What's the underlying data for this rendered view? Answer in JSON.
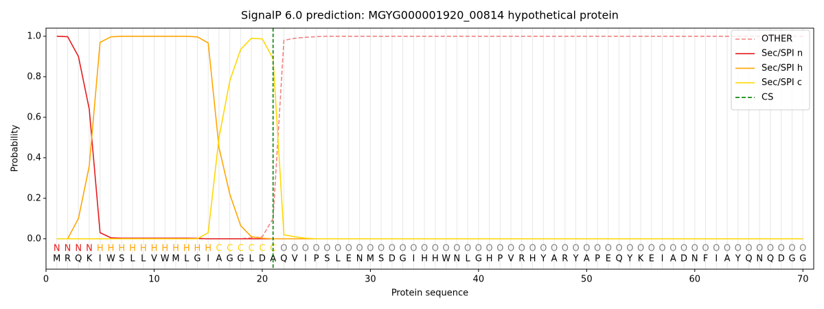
{
  "chart_data": {
    "type": "line",
    "title": "SignalP 6.0 prediction: MGYG000001920_00814 hypothetical protein",
    "xlabel": "Protein sequence",
    "ylabel": "Probability",
    "x": [
      1,
      2,
      3,
      4,
      5,
      6,
      7,
      8,
      9,
      10,
      11,
      12,
      13,
      14,
      15,
      16,
      17,
      18,
      19,
      20,
      21,
      22,
      23,
      24,
      25,
      26,
      27,
      28,
      29,
      30,
      31,
      32,
      33,
      34,
      35,
      36,
      37,
      38,
      39,
      40,
      41,
      42,
      43,
      44,
      45,
      46,
      47,
      48,
      49,
      50,
      51,
      52,
      53,
      54,
      55,
      56,
      57,
      58,
      59,
      60,
      61,
      62,
      63,
      64,
      65,
      66,
      67,
      68,
      69,
      70
    ],
    "sequence": [
      "M",
      "R",
      "Q",
      "K",
      "I",
      "W",
      "S",
      "L",
      "L",
      "V",
      "W",
      "M",
      "L",
      "G",
      "I",
      "A",
      "G",
      "G",
      "L",
      "D",
      "A",
      "Q",
      "V",
      "I",
      "P",
      "S",
      "L",
      "E",
      "N",
      "M",
      "S",
      "D",
      "G",
      "I",
      "H",
      "H",
      "W",
      "N",
      "L",
      "G",
      "H",
      "P",
      "V",
      "R",
      "H",
      "Y",
      "A",
      "R",
      "Y",
      "A",
      "P",
      "E",
      "Q",
      "Y",
      "K",
      "E",
      "I",
      "A",
      "D",
      "N",
      "F",
      "I",
      "A",
      "Y",
      "Q",
      "N",
      "Q",
      "D",
      "G",
      "G"
    ],
    "annotations": [
      "N",
      "N",
      "N",
      "N",
      "H",
      "H",
      "H",
      "H",
      "H",
      "H",
      "H",
      "H",
      "H",
      "H",
      "H",
      "C",
      "C",
      "C",
      "C",
      "C",
      "C",
      "O",
      "O",
      "O",
      "O",
      "O",
      "O",
      "O",
      "O",
      "O",
      "O",
      "O",
      "O",
      "O",
      "O",
      "O",
      "O",
      "O",
      "O",
      "O",
      "O",
      "O",
      "O",
      "O",
      "O",
      "O",
      "O",
      "O",
      "O",
      "O",
      "O",
      "O",
      "O",
      "O",
      "O",
      "O",
      "O",
      "O",
      "O",
      "O",
      "O",
      "O",
      "O",
      "O",
      "O",
      "O",
      "O",
      "O",
      "O",
      "O"
    ],
    "annotation_colors": {
      "N": "#e41a1c",
      "H": "#ffa500",
      "C": "#ffd700",
      "O": "#808080"
    },
    "series": [
      {
        "name": "OTHER",
        "color": "#f08080",
        "linestyle": "dashed",
        "values": [
          0,
          0,
          0,
          0,
          0,
          0,
          0,
          0,
          0,
          0,
          0,
          0,
          0,
          0,
          0,
          0,
          0,
          0,
          0.005,
          0.01,
          0.1,
          0.98,
          0.99,
          0.995,
          0.998,
          1,
          1,
          1,
          1,
          1,
          1,
          1,
          1,
          1,
          1,
          1,
          1,
          1,
          1,
          1,
          1,
          1,
          1,
          1,
          1,
          1,
          1,
          1,
          1,
          1,
          1,
          1,
          1,
          1,
          1,
          1,
          1,
          1,
          1,
          1,
          1,
          1,
          1,
          1,
          1,
          1,
          1,
          1,
          1,
          1
        ]
      },
      {
        "name": "Sec/SPI n",
        "color": "#e41a1c",
        "linestyle": "solid",
        "values": [
          1,
          0.998,
          0.9,
          0.64,
          0.03,
          0.005,
          0.003,
          0.003,
          0.003,
          0.003,
          0.003,
          0.003,
          0.003,
          0.002,
          0,
          0,
          0,
          0,
          0,
          0,
          0,
          0,
          0,
          0,
          0,
          0,
          0,
          0,
          0,
          0,
          0,
          0,
          0,
          0,
          0,
          0,
          0,
          0,
          0,
          0,
          0,
          0,
          0,
          0,
          0,
          0,
          0,
          0,
          0,
          0,
          0,
          0,
          0,
          0,
          0,
          0,
          0,
          0,
          0,
          0,
          0,
          0,
          0,
          0,
          0,
          0,
          0,
          0,
          0,
          0
        ]
      },
      {
        "name": "Sec/SPI h",
        "color": "#ffa500",
        "linestyle": "solid",
        "values": [
          0,
          0,
          0.1,
          0.36,
          0.97,
          0.997,
          1,
          1,
          1,
          1,
          1,
          1,
          1,
          0.997,
          0.967,
          0.45,
          0.22,
          0.065,
          0.01,
          0.003,
          0,
          0,
          0,
          0,
          0,
          0,
          0,
          0,
          0,
          0,
          0,
          0,
          0,
          0,
          0,
          0,
          0,
          0,
          0,
          0,
          0,
          0,
          0,
          0,
          0,
          0,
          0,
          0,
          0,
          0,
          0,
          0,
          0,
          0,
          0,
          0,
          0,
          0,
          0,
          0,
          0,
          0,
          0,
          0,
          0,
          0,
          0,
          0,
          0,
          0
        ]
      },
      {
        "name": "Sec/SPI c",
        "color": "#ffd700",
        "linestyle": "solid",
        "values": [
          0,
          0,
          0,
          0,
          0,
          0,
          0,
          0,
          0,
          0,
          0,
          0,
          0,
          0,
          0.03,
          0.5,
          0.78,
          0.935,
          0.99,
          0.987,
          0.89,
          0.02,
          0.01,
          0.003,
          0,
          0,
          0,
          0,
          0,
          0,
          0,
          0,
          0,
          0,
          0,
          0,
          0,
          0,
          0,
          0,
          0,
          0,
          0,
          0,
          0,
          0,
          0,
          0,
          0,
          0,
          0,
          0,
          0,
          0,
          0,
          0,
          0,
          0,
          0,
          0,
          0,
          0,
          0,
          0,
          0,
          0,
          0,
          0,
          0,
          0
        ]
      }
    ],
    "cs": {
      "name": "CS",
      "x": 21,
      "color": "#008000"
    },
    "xlim": [
      0,
      71
    ],
    "ylim": [
      -0.15,
      1.04
    ],
    "xticks": [
      0,
      10,
      20,
      30,
      40,
      50,
      60,
      70
    ],
    "yticks": [
      {
        "value": 0,
        "label": "0.0"
      },
      {
        "value": 0.2,
        "label": "0.2"
      },
      {
        "value": 0.4,
        "label": "0.4"
      },
      {
        "value": 0.6,
        "label": "0.6"
      },
      {
        "value": 0.8,
        "label": "0.8"
      },
      {
        "value": 1,
        "label": "1.0"
      }
    ],
    "legend": "upper right",
    "grid": true
  }
}
